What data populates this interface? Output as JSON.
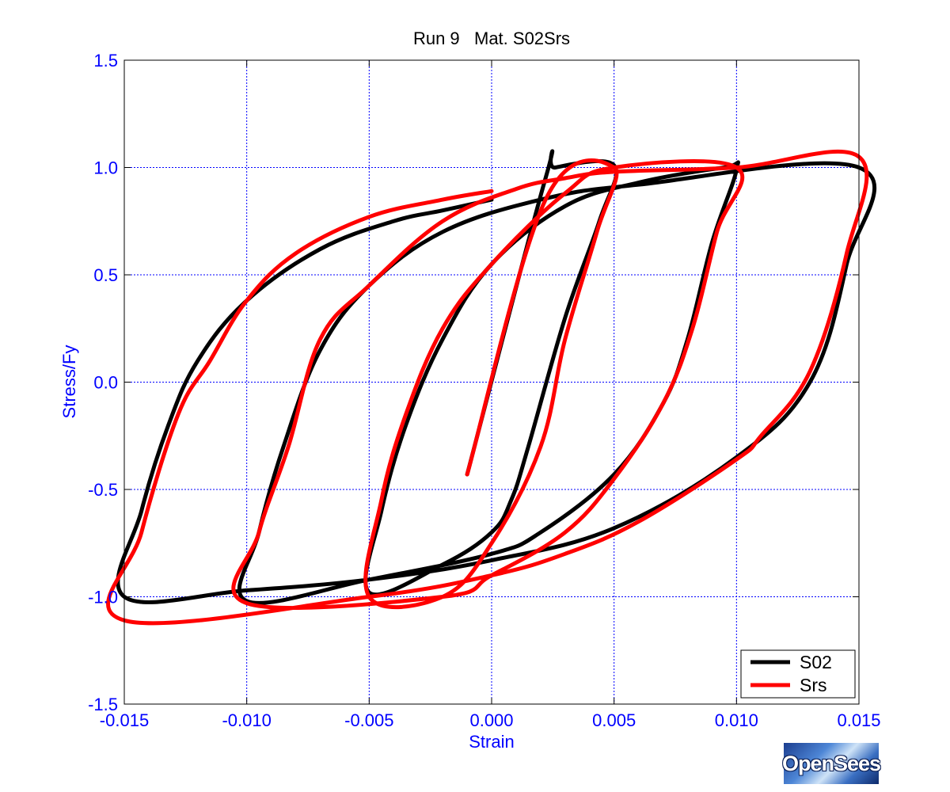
{
  "chart_data": {
    "type": "line",
    "title": "Run 9   Mat. S02Srs",
    "xlabel": "Strain",
    "ylabel": "Stress/Fy",
    "xlim": [
      -0.015,
      0.015
    ],
    "ylim": [
      -1.5,
      1.5
    ],
    "x_ticks": [
      -0.015,
      -0.01,
      -0.005,
      0.0,
      0.005,
      0.01,
      0.015
    ],
    "x_tick_labels": [
      "-0.015",
      "-0.010",
      "-0.005",
      "0.000",
      "0.005",
      "0.010",
      "0.015"
    ],
    "y_ticks": [
      1.5,
      1.0,
      0.5,
      0.0,
      -0.5,
      -1.0,
      -1.5
    ],
    "y_tick_labels": [
      "1.5",
      "1.0",
      "0.5",
      "0.0",
      "-0.5",
      "-1.0",
      "-1.5"
    ],
    "grid": true,
    "legend_position": "bottom-right",
    "series": [
      {
        "name": "S02",
        "color": "#000000",
        "points": [
          [
            -0.001,
            -0.43
          ],
          [
            0.0022,
            0.95
          ],
          [
            0.0026,
            1.0
          ],
          [
            0.005,
            1.01
          ],
          [
            0.0044,
            0.75
          ],
          [
            0.003,
            0.3
          ],
          [
            0.0015,
            -0.3
          ],
          [
            0.0008,
            -0.55
          ],
          [
            0.0,
            -0.7
          ],
          [
            -0.002,
            -0.85
          ],
          [
            -0.005,
            -0.98
          ],
          [
            -0.0045,
            -0.6
          ],
          [
            -0.0035,
            -0.2
          ],
          [
            -0.002,
            0.2
          ],
          [
            0.0,
            0.55
          ],
          [
            0.003,
            0.82
          ],
          [
            0.006,
            0.93
          ],
          [
            0.0095,
            1.0
          ],
          [
            0.01,
            0.99
          ],
          [
            0.009,
            0.65
          ],
          [
            0.008,
            0.2
          ],
          [
            0.007,
            -0.1
          ],
          [
            0.005,
            -0.43
          ],
          [
            0.002,
            -0.7
          ],
          [
            0.0,
            -0.8
          ],
          [
            -0.005,
            -0.92
          ],
          [
            -0.01,
            -1.02
          ],
          [
            -0.0095,
            -0.7
          ],
          [
            -0.0085,
            -0.3
          ],
          [
            -0.007,
            0.15
          ],
          [
            -0.005,
            0.45
          ],
          [
            -0.002,
            0.7
          ],
          [
            0.002,
            0.85
          ],
          [
            0.006,
            0.92
          ],
          [
            0.015,
            1.0
          ],
          [
            0.0145,
            0.55
          ],
          [
            0.013,
            0.0
          ],
          [
            0.01,
            -0.35
          ],
          [
            0.005,
            -0.68
          ],
          [
            0.0,
            -0.83
          ],
          [
            -0.005,
            -0.92
          ],
          [
            -0.01,
            -0.97
          ],
          [
            -0.015,
            -1.0
          ],
          [
            -0.0143,
            -0.6
          ],
          [
            -0.0132,
            -0.2
          ],
          [
            -0.012,
            0.1
          ],
          [
            -0.01,
            0.38
          ],
          [
            -0.007,
            0.62
          ],
          [
            -0.004,
            0.75
          ],
          [
            -0.002,
            0.8
          ],
          [
            0.0,
            0.85
          ]
        ]
      },
      {
        "name": "Srs",
        "color": "#ff0000",
        "points": [
          [
            -0.001,
            -0.43
          ],
          [
            0.0022,
            0.85
          ],
          [
            0.005,
            1.0
          ],
          [
            0.0043,
            0.7
          ],
          [
            0.003,
            0.2
          ],
          [
            0.002,
            -0.3
          ],
          [
            0.0,
            -0.75
          ],
          [
            -0.002,
            -1.0
          ],
          [
            -0.005,
            -1.0
          ],
          [
            -0.0045,
            -0.55
          ],
          [
            -0.0035,
            -0.15
          ],
          [
            -0.002,
            0.25
          ],
          [
            0.0,
            0.55
          ],
          [
            0.003,
            0.88
          ],
          [
            0.005,
            1.0
          ],
          [
            0.01,
            1.0
          ],
          [
            0.0092,
            0.7
          ],
          [
            0.0082,
            0.25
          ],
          [
            0.007,
            -0.1
          ],
          [
            0.005,
            -0.45
          ],
          [
            0.003,
            -0.7
          ],
          [
            0.0,
            -0.9
          ],
          [
            -0.002,
            -1.0
          ],
          [
            -0.01,
            -1.03
          ],
          [
            -0.0095,
            -0.7
          ],
          [
            -0.0083,
            -0.3
          ],
          [
            -0.007,
            0.2
          ],
          [
            -0.005,
            0.45
          ],
          [
            -0.002,
            0.75
          ],
          [
            0.001,
            0.9
          ],
          [
            0.003,
            0.95
          ],
          [
            0.005,
            0.98
          ],
          [
            0.01,
            1.0
          ],
          [
            0.015,
            1.05
          ],
          [
            0.0145,
            0.6
          ],
          [
            0.013,
            0.05
          ],
          [
            0.011,
            -0.25
          ],
          [
            0.01,
            -0.36
          ],
          [
            0.006,
            -0.65
          ],
          [
            0.003,
            -0.8
          ],
          [
            0.0,
            -0.9
          ],
          [
            -0.005,
            -1.0
          ],
          [
            -0.015,
            -1.11
          ],
          [
            -0.0143,
            -0.7
          ],
          [
            -0.0128,
            -0.15
          ],
          [
            -0.0115,
            0.1
          ],
          [
            -0.01,
            0.38
          ],
          [
            -0.008,
            0.6
          ],
          [
            -0.005,
            0.77
          ],
          [
            -0.002,
            0.85
          ],
          [
            0.0,
            0.89
          ]
        ]
      }
    ]
  },
  "logo": {
    "text": "OpenSees"
  }
}
